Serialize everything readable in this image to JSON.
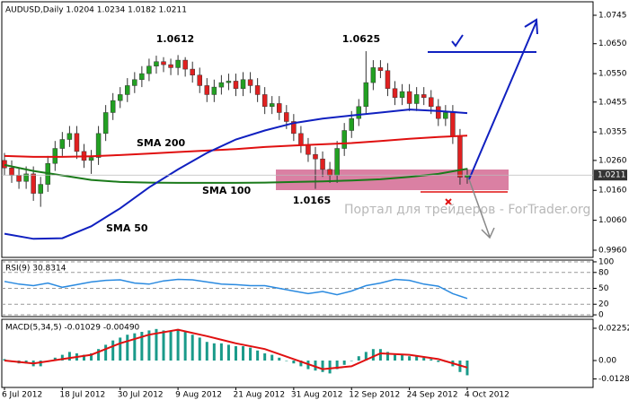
{
  "chart_data": [
    {
      "type": "candlestick",
      "title": "AUDUSD,Daily 1.0204 1.0234 1.0182 1.0211",
      "xlim": [
        -0.37,
        81.4
      ],
      "ylim": [
        0.9936,
        1.079
      ],
      "grid": false,
      "yticks": [
        {
          "value": 1.0745,
          "label": "1.0745"
        },
        {
          "value": 1.065,
          "label": "1.0650"
        },
        {
          "value": 1.055,
          "label": "1.0550"
        },
        {
          "value": 1.0455,
          "label": "1.0455"
        },
        {
          "value": 1.0355,
          "label": "1.0355"
        },
        {
          "value": 1.026,
          "label": "1.0260"
        },
        {
          "value": 1.016,
          "label": "1.0160"
        },
        {
          "value": 1.006,
          "label": "1.0060"
        },
        {
          "value": 0.996,
          "label": "0.9960"
        }
      ],
      "up_color": "#22a022",
      "down_color": "#e02020",
      "open": [
        1.026,
        1.0235,
        1.021,
        1.019,
        1.0215,
        1.015,
        1.018,
        1.025,
        1.03,
        1.033,
        1.035,
        1.029,
        1.026,
        1.027,
        1.035,
        1.042,
        1.046,
        1.048,
        1.051,
        1.053,
        1.055,
        1.0575,
        1.059,
        1.058,
        1.057,
        1.0595,
        1.0565,
        1.0545,
        1.051,
        1.048,
        1.0505,
        1.052,
        1.0525,
        1.05,
        1.053,
        1.051,
        1.048,
        1.044,
        1.045,
        1.042,
        1.039,
        1.035,
        1.031,
        1.028,
        1.0265,
        1.023,
        1.021,
        1.03,
        1.036,
        1.04,
        1.044,
        1.052,
        1.057,
        1.056,
        1.05,
        1.047,
        1.049,
        1.045,
        1.048,
        1.047,
        1.044,
        1.04,
        1.042,
        1.034,
        1.0204
      ],
      "high": [
        1.0285,
        1.026,
        1.0235,
        1.024,
        1.024,
        1.0205,
        1.0275,
        1.0325,
        1.0355,
        1.0375,
        1.0375,
        1.0315,
        1.0295,
        1.0375,
        1.0445,
        1.0485,
        1.0505,
        1.0535,
        1.0555,
        1.0575,
        1.06,
        1.061,
        1.0605,
        1.06,
        1.0612,
        1.0605,
        1.059,
        1.057,
        1.0535,
        1.053,
        1.0545,
        1.055,
        1.055,
        1.0555,
        1.0555,
        1.0535,
        1.0505,
        1.0475,
        1.0475,
        1.0445,
        1.0415,
        1.0375,
        1.0335,
        1.0305,
        1.029,
        1.0255,
        1.0325,
        1.0385,
        1.0425,
        1.0465,
        1.0625,
        1.0595,
        1.0595,
        1.0585,
        1.0525,
        1.0515,
        1.0515,
        1.0505,
        1.0505,
        1.0495,
        1.0465,
        1.0445,
        1.0445,
        1.0365,
        1.0234
      ],
      "low": [
        1.021,
        1.0185,
        1.0165,
        1.0165,
        1.0125,
        1.0105,
        1.0155,
        1.0225,
        1.0275,
        1.0305,
        1.0265,
        1.0235,
        1.0215,
        1.0245,
        1.0325,
        1.0395,
        1.0435,
        1.0455,
        1.0485,
        1.0505,
        1.0525,
        1.055,
        1.0555,
        1.0545,
        1.0545,
        1.054,
        1.052,
        1.0485,
        1.0455,
        1.0455,
        1.048,
        1.0495,
        1.0475,
        1.0475,
        1.0485,
        1.0455,
        1.0415,
        1.0415,
        1.0395,
        1.0365,
        1.0325,
        1.0285,
        1.0255,
        1.0165,
        1.0205,
        1.0185,
        1.0185,
        1.0275,
        1.0335,
        1.0375,
        1.0415,
        1.0495,
        1.0535,
        1.0475,
        1.0445,
        1.0445,
        1.0425,
        1.0425,
        1.0445,
        1.0415,
        1.0375,
        1.0375,
        1.0315,
        1.0179,
        1.0182
      ],
      "close": [
        1.0235,
        1.021,
        1.019,
        1.0215,
        1.015,
        1.018,
        1.025,
        1.03,
        1.033,
        1.035,
        1.029,
        1.026,
        1.027,
        1.035,
        1.042,
        1.046,
        1.048,
        1.051,
        1.053,
        1.055,
        1.0575,
        1.059,
        1.058,
        1.057,
        1.0595,
        1.0565,
        1.0545,
        1.051,
        1.048,
        1.0505,
        1.052,
        1.0525,
        1.05,
        1.053,
        1.051,
        1.048,
        1.044,
        1.045,
        1.042,
        1.039,
        1.035,
        1.031,
        1.028,
        1.0265,
        1.023,
        1.021,
        1.03,
        1.036,
        1.04,
        1.044,
        1.052,
        1.057,
        1.056,
        1.05,
        1.047,
        1.049,
        1.045,
        1.048,
        1.047,
        1.044,
        1.04,
        1.042,
        1.034,
        1.0204,
        1.0211
      ],
      "series": [
        {
          "name": "SMA 200",
          "color": "#e01010",
          "x": [
            0,
            4,
            8,
            12,
            16,
            20,
            24,
            28,
            32,
            36,
            40,
            44,
            48,
            52,
            56,
            60,
            64
          ],
          "values": [
            1.0275,
            1.0272,
            1.0272,
            1.0274,
            1.0278,
            1.0283,
            1.0288,
            1.0293,
            1.0298,
            1.0305,
            1.031,
            1.0314,
            1.0318,
            1.0325,
            1.0332,
            1.0338,
            1.0343
          ]
        },
        {
          "name": "SMA 100",
          "color": "#1a7a1a",
          "x": [
            0,
            4,
            8,
            12,
            16,
            20,
            24,
            28,
            32,
            36,
            40,
            44,
            48,
            52,
            56,
            60,
            64
          ],
          "values": [
            1.0245,
            1.0225,
            1.021,
            1.0195,
            1.0188,
            1.0186,
            1.0185,
            1.0185,
            1.0185,
            1.0186,
            1.0188,
            1.019,
            1.0193,
            1.0197,
            1.0205,
            1.0215,
            1.0232
          ]
        },
        {
          "name": "SMA 50",
          "color": "#1020c0",
          "x": [
            0,
            4,
            8,
            12,
            16,
            20,
            24,
            28,
            32,
            36,
            40,
            44,
            48,
            52,
            56,
            60,
            64
          ],
          "values": [
            1.0015,
            0.9998,
            1.0,
            1.004,
            1.01,
            1.017,
            1.023,
            1.0285,
            1.033,
            1.036,
            1.0385,
            1.04,
            1.041,
            1.042,
            1.043,
            1.0425,
            1.0418
          ]
        }
      ],
      "annotations": [
        "1.0612",
        "1.0625",
        "1.0165"
      ],
      "current_price": 1.0211,
      "watermark": "Портал для трейдеров - ForTrader.org"
    },
    {
      "type": "line",
      "title": "RSI(9) 30.8314",
      "xlim": [
        -0.37,
        81.4
      ],
      "ylim": [
        -3.3,
        103.3
      ],
      "grid": true,
      "yticks": [
        0,
        20,
        50,
        80,
        100
      ],
      "color": "#2a8ae0",
      "x": [
        0,
        2,
        4,
        6,
        8,
        10,
        12,
        14,
        16,
        18,
        20,
        22,
        24,
        26,
        28,
        30,
        32,
        34,
        36,
        38,
        40,
        42,
        44,
        46,
        48,
        50,
        52,
        54,
        56,
        58,
        60,
        62,
        64
      ],
      "values": [
        63,
        58,
        55,
        60,
        52,
        57,
        62,
        65,
        66,
        60,
        58,
        64,
        67,
        66,
        62,
        58,
        57,
        55,
        55,
        50,
        45,
        40,
        44,
        38,
        45,
        55,
        60,
        67,
        65,
        58,
        54,
        40,
        30.83
      ]
    },
    {
      "type": "bar",
      "title": "MACD(5,34,5) -0.01029 -0.00490",
      "xlim": [
        -0.37,
        81.4
      ],
      "ylim": [
        -0.01877,
        0.02878
      ],
      "grid": false,
      "yticks": [
        0.02252,
        {
          "value": 0,
          "label": "0.00"
        },
        -0.01283
      ],
      "color": "#1a9a8a",
      "values": [
        0.001,
        -0.001,
        -0.002,
        -0.002,
        -0.004,
        -0.004,
        -0.001,
        0.002,
        0.004,
        0.006,
        0.005,
        0.004,
        0.005,
        0.008,
        0.011,
        0.014,
        0.016,
        0.018,
        0.019,
        0.02,
        0.021,
        0.022,
        0.021,
        0.021,
        0.022,
        0.02,
        0.018,
        0.016,
        0.013,
        0.012,
        0.012,
        0.011,
        0.01,
        0.01,
        0.009,
        0.007,
        0.005,
        0.004,
        0.002,
        0.0,
        -0.002,
        -0.004,
        -0.006,
        -0.007,
        -0.008,
        -0.009,
        -0.006,
        -0.003,
        0.0,
        0.003,
        0.006,
        0.008,
        0.008,
        0.006,
        0.004,
        0.004,
        0.003,
        0.003,
        0.002,
        0.001,
        -0.001,
        -0.001,
        -0.004,
        -0.008,
        -0.01029
      ],
      "signal": {
        "color": "#e01010",
        "x": [
          0,
          4,
          8,
          12,
          16,
          20,
          24,
          28,
          32,
          36,
          40,
          44,
          48,
          52,
          56,
          60,
          64
        ],
        "values": [
          0.0,
          -0.002,
          0.001,
          0.004,
          0.012,
          0.018,
          0.0215,
          0.017,
          0.012,
          0.008,
          0.001,
          -0.006,
          -0.004,
          0.005,
          0.004,
          0.001,
          -0.0049
        ]
      },
      "xticks": [
        {
          "value": 0,
          "label": "6 Jul 2012"
        },
        {
          "value": 8,
          "label": "18 Jul 2012"
        },
        {
          "value": 16,
          "label": "30 Jul 2012"
        },
        {
          "value": 24,
          "label": "9 Aug 2012"
        },
        {
          "value": 32,
          "label": "21 Aug 2012"
        },
        {
          "value": 40,
          "label": "31 Aug 2012"
        },
        {
          "value": 48,
          "label": "12 Sep 2012"
        },
        {
          "value": 56,
          "label": "24 Sep 2012"
        },
        {
          "value": 64,
          "label": "4 Oct 2012"
        }
      ]
    }
  ]
}
